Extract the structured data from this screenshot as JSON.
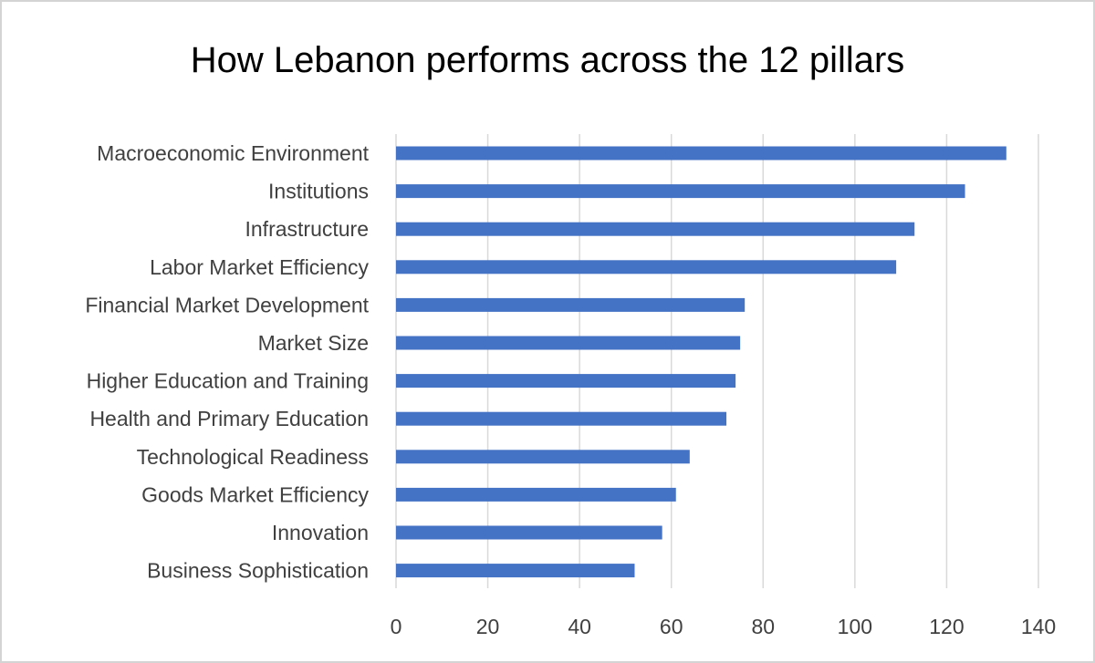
{
  "chart_data": {
    "type": "bar",
    "orientation": "horizontal",
    "title": "How Lebanon performs across the 12 pillars",
    "xlabel": "",
    "ylabel": "",
    "categories": [
      "Macroeconomic Environment",
      "Institutions",
      "Infrastructure",
      "Labor Market Efficiency",
      "Financial Market Development",
      "Market Size",
      "Higher Education and Training",
      "Health and Primary Education",
      "Technological Readiness",
      "Goods Market Efficiency",
      "Innovation",
      "Business Sophistication"
    ],
    "values": [
      133,
      124,
      113,
      109,
      76,
      75,
      74,
      72,
      64,
      61,
      58,
      52
    ],
    "xlim": [
      0,
      140
    ],
    "xticks": [
      0,
      20,
      40,
      60,
      80,
      100,
      120,
      140
    ],
    "grid": "vertical",
    "legend": "none",
    "bar_color": "#4472c4",
    "grid_color": "#d9d9d9"
  }
}
